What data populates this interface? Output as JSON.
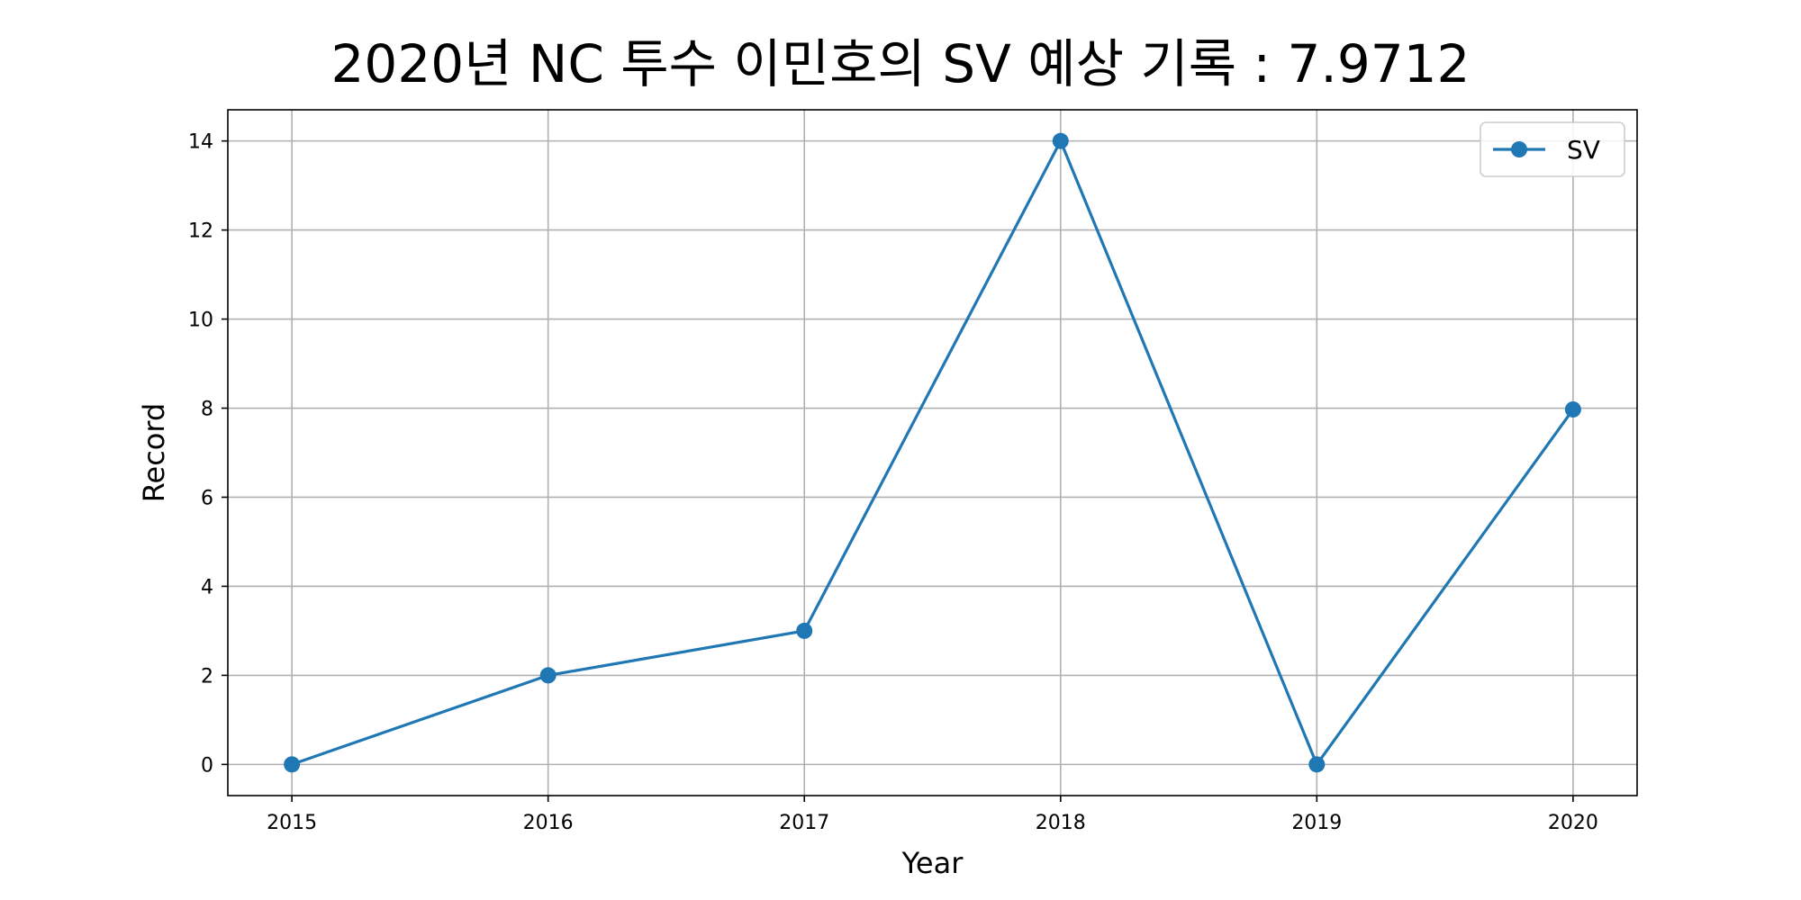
{
  "chart_data": {
    "type": "line",
    "title": "2020년 NC 투수 이민호의 SV 예상 기록 : 7.9712",
    "xlabel": "Year",
    "ylabel": "Record",
    "x": [
      2015,
      2016,
      2017,
      2018,
      2019,
      2020
    ],
    "series": [
      {
        "name": "SV",
        "values": [
          0,
          2,
          3,
          14,
          0,
          7.9712
        ],
        "color": "#1f77b4",
        "marker": "circle"
      }
    ],
    "xlim": [
      2014.75,
      2020.25
    ],
    "ylim": [
      -0.7,
      14.7
    ],
    "yticks": [
      0,
      2,
      4,
      6,
      8,
      10,
      12,
      14
    ],
    "grid": true,
    "legend_position": "top-right"
  }
}
